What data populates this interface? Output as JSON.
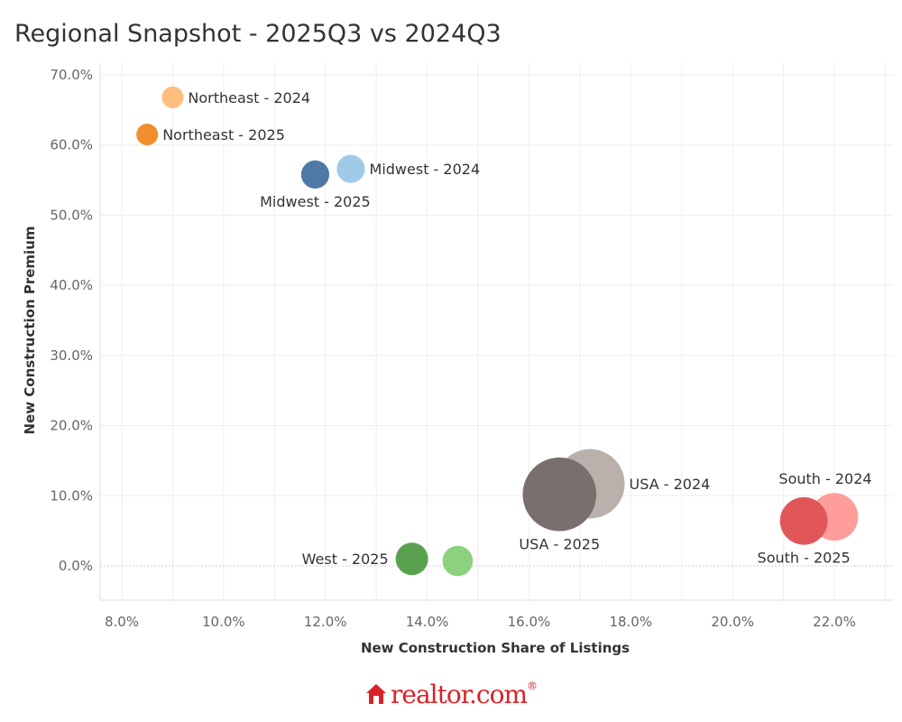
{
  "title": "Regional Snapshot - 2025Q3 vs 2024Q3",
  "logo": {
    "text": "realtor.com",
    "trademark": "®",
    "icon": "house-icon",
    "color": "#d92228"
  },
  "chart_data": {
    "type": "scatter",
    "title": "Regional Snapshot - 2025Q3 vs 2024Q3",
    "xlabel": "New Construction Share of Listings",
    "ylabel": "New Construction Premium",
    "xlim": [
      7.6,
      23.2
    ],
    "ylim": [
      -4.5,
      72
    ],
    "x_ticks": [
      8,
      10,
      12,
      14,
      16,
      18,
      20,
      22
    ],
    "x_tick_labels": [
      "8.0%",
      "10.0%",
      "12.0%",
      "14.0%",
      "16.0%",
      "18.0%",
      "20.0%",
      "22.0%"
    ],
    "y_ticks": [
      0,
      10,
      20,
      30,
      40,
      50,
      60,
      70
    ],
    "y_tick_labels": [
      "0.0%",
      "10.0%",
      "20.0%",
      "30.0%",
      "40.0%",
      "50.0%",
      "60.0%",
      "70.0%"
    ],
    "grid": true,
    "legend": "none",
    "points": [
      {
        "label": "Northeast - 2024",
        "x": 9.0,
        "y": 66.8,
        "size": 1.0,
        "color": "#ffbe7d",
        "label_pos": "right"
      },
      {
        "label": "Northeast - 2025",
        "x": 8.5,
        "y": 61.5,
        "size": 1.0,
        "color": "#f28e2b",
        "label_pos": "right"
      },
      {
        "label": "Midwest - 2024",
        "x": 12.5,
        "y": 56.6,
        "size": 1.3,
        "color": "#a0cbe8",
        "label_pos": "right"
      },
      {
        "label": "Midwest - 2025",
        "x": 11.8,
        "y": 55.8,
        "size": 1.3,
        "color": "#4e79a7",
        "label_pos": "below"
      },
      {
        "label": "USA - 2024",
        "x": 17.2,
        "y": 11.7,
        "size": 3.2,
        "color": "#bab0ac",
        "label_pos": "right"
      },
      {
        "label": "USA - 2025",
        "x": 16.6,
        "y": 10.2,
        "size": 3.4,
        "color": "#79706e",
        "label_pos": "below"
      },
      {
        "label": "South - 2024",
        "x": 22.0,
        "y": 7.0,
        "size": 2.2,
        "color": "#ff9d9a",
        "label_pos": "above"
      },
      {
        "label": "South - 2025",
        "x": 21.4,
        "y": 6.4,
        "size": 2.2,
        "color": "#e15759",
        "label_pos": "below"
      },
      {
        "label": "West - 2025",
        "x": 13.7,
        "y": 1.0,
        "size": 1.5,
        "color": "#59a14f",
        "label_pos": "left"
      },
      {
        "label": "",
        "x": 14.6,
        "y": 0.7,
        "size": 1.4,
        "color": "#8cd17d",
        "label_pos": "none"
      }
    ]
  }
}
